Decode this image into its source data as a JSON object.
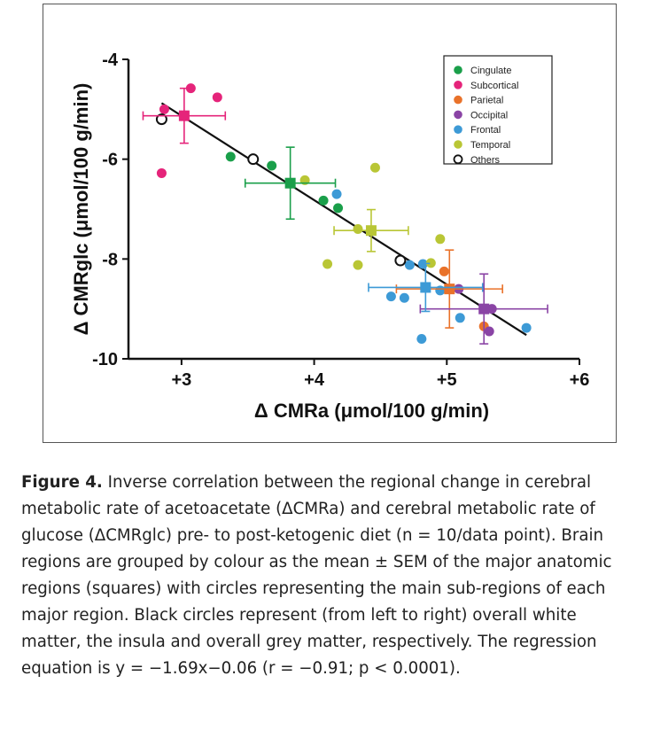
{
  "chart_data": {
    "type": "scatter",
    "xlabel": "Δ CMRa (μmol/100 g/min)",
    "ylabel": "Δ CMRglc (μmol/100 g/min)",
    "xlim": [
      2.6,
      6.0
    ],
    "ylim": [
      -10,
      -4
    ],
    "xticks": [
      3,
      4,
      5,
      6
    ],
    "xtick_labels": [
      "+3",
      "+4",
      "+5",
      "+6"
    ],
    "yticks": [
      -4,
      -6,
      -8,
      -10
    ],
    "ytick_labels": [
      "-4",
      "-6",
      "-8",
      "-10"
    ],
    "grid": false,
    "legend_position": "top-right",
    "regression": {
      "x1": 2.85,
      "x2": 5.6
    },
    "series": [
      {
        "name": "Cingulate",
        "color": "#1a9f4a",
        "marker": "circle",
        "points": [
          [
            3.37,
            -5.95
          ],
          [
            3.68,
            -6.13
          ],
          [
            4.07,
            -6.83
          ],
          [
            4.18,
            -6.98
          ]
        ],
        "mean": {
          "x": 3.82,
          "y": -6.48,
          "xerr": 0.34,
          "yerr": 0.72
        }
      },
      {
        "name": "Subcortical",
        "color": "#e5247a",
        "marker": "circle",
        "points": [
          [
            2.87,
            -5.0
          ],
          [
            3.07,
            -4.58
          ],
          [
            3.27,
            -4.76
          ],
          [
            2.85,
            -6.28
          ]
        ],
        "mean": {
          "x": 3.02,
          "y": -5.13,
          "xerr": 0.31,
          "yerr": 0.55
        }
      },
      {
        "name": "Parietal",
        "color": "#e9722a",
        "marker": "circle",
        "points": [
          [
            4.98,
            -8.25
          ],
          [
            5.03,
            -8.6
          ],
          [
            5.28,
            -9.35
          ]
        ],
        "mean": {
          "x": 5.02,
          "y": -8.6,
          "xerr": 0.4,
          "yerr": 0.78
        }
      },
      {
        "name": "Occipital",
        "color": "#8a44a5",
        "marker": "circle",
        "points": [
          [
            5.34,
            -9.0
          ],
          [
            5.09,
            -8.6
          ],
          [
            5.32,
            -9.45
          ]
        ],
        "mean": {
          "x": 5.28,
          "y": -9.0,
          "xerr": 0.48,
          "yerr": 0.7
        }
      },
      {
        "name": "Frontal",
        "color": "#3d9ad6",
        "marker": "circle",
        "points": [
          [
            4.17,
            -6.7
          ],
          [
            4.72,
            -8.12
          ],
          [
            4.82,
            -8.1
          ],
          [
            4.68,
            -8.78
          ],
          [
            4.95,
            -8.63
          ],
          [
            5.1,
            -9.18
          ],
          [
            4.81,
            -9.6
          ],
          [
            5.6,
            -9.38
          ],
          [
            4.58,
            -8.75
          ]
        ],
        "mean": {
          "x": 4.84,
          "y": -8.57,
          "xerr": 0.43,
          "yerr": 0.48
        }
      },
      {
        "name": "Temporal",
        "color": "#b9c635",
        "marker": "circle",
        "points": [
          [
            3.93,
            -6.42
          ],
          [
            4.46,
            -6.17
          ],
          [
            4.95,
            -7.6
          ],
          [
            4.1,
            -8.1
          ],
          [
            4.33,
            -8.12
          ],
          [
            4.88,
            -8.08
          ],
          [
            4.33,
            -7.4
          ]
        ],
        "mean": {
          "x": 4.43,
          "y": -7.43,
          "xerr": 0.28,
          "yerr": 0.42
        }
      },
      {
        "name": "Others",
        "color": "#111111",
        "marker": "open-circle",
        "points": [
          [
            2.85,
            -5.2
          ],
          [
            3.54,
            -6.0
          ],
          [
            4.65,
            -8.03
          ]
        ]
      }
    ]
  },
  "caption": {
    "label": "Figure 4.",
    "text": "Inverse correlation between the regional change in cerebral metabolic rate of acetoacetate (ΔCMRa) and cerebral metabolic rate of glucose (ΔCMRglc) pre- to post-ketogenic diet (n = 10/data point). Brain regions are grouped by colour as the mean ± SEM of the major anatomic regions (squares) with circles representing the main sub-regions of each major region. Black circles represent (from left to right) overall white matter, the insula and overall grey matter, respectively. The regression equation is y = −1.69x−0.06 (r = −0.91; p < 0.0001)."
  }
}
